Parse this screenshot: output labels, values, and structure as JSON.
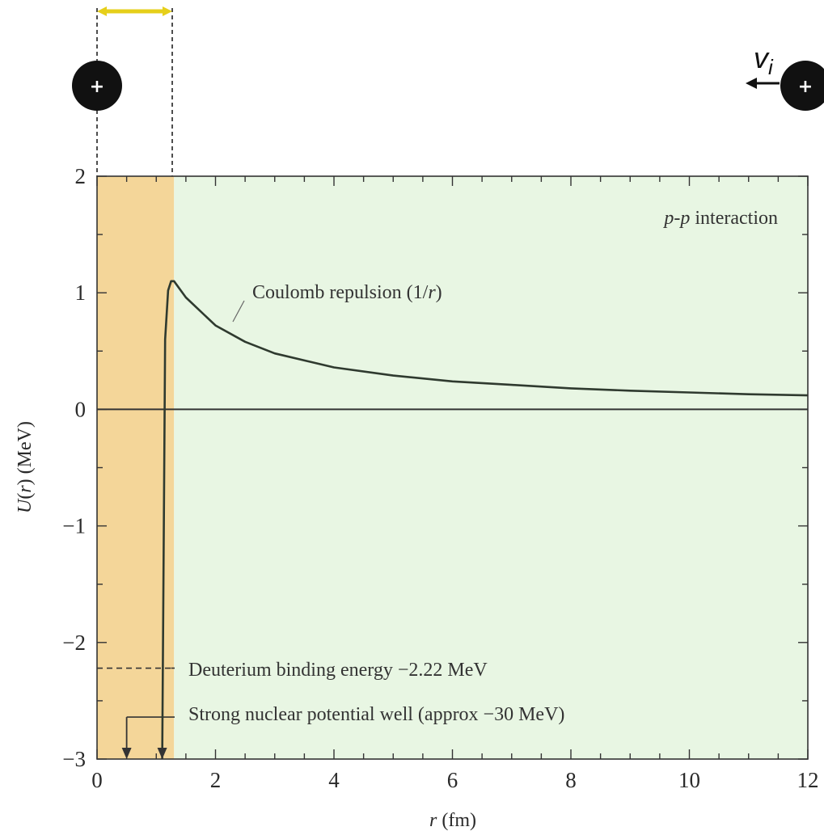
{
  "chart_data": {
    "type": "line",
    "title": "",
    "xlabel": "r (fm)",
    "ylabel": "U(r) (MeV)",
    "xlim": [
      0,
      12
    ],
    "ylim": [
      -3,
      2
    ],
    "x_ticks": [
      "0",
      "2",
      "4",
      "6",
      "8",
      "10",
      "12"
    ],
    "y_ticks": [
      "2",
      "1",
      "0",
      "−1",
      "−2",
      "−3"
    ],
    "grid": false,
    "regions": [
      {
        "x": [
          0,
          1.3
        ],
        "color": "#f4d699"
      },
      {
        "x": [
          1.3,
          12
        ],
        "color": "#e8f6e3"
      }
    ],
    "series": [
      {
        "color": "#2f3a2f",
        "x": [
          1.1,
          1.15,
          1.2,
          1.25,
          1.3,
          1.5,
          2,
          2.5,
          3,
          4,
          5,
          6,
          7,
          8,
          9,
          10,
          11,
          12
        ],
        "y": [
          -3,
          0.6,
          1.02,
          1.1,
          1.1,
          0.96,
          0.72,
          0.58,
          0.48,
          0.36,
          0.29,
          0.24,
          0.21,
          0.18,
          0.16,
          0.145,
          0.13,
          0.12
        ]
      }
    ],
    "reference_lines": [
      {
        "axis": "y",
        "value": 0
      },
      {
        "axis": "y",
        "value": -2.22,
        "style": "dashed"
      }
    ],
    "annotations": [
      {
        "id": "pp",
        "text": "p-p interaction",
        "parts": [
          {
            "t": "p",
            "italic": true
          },
          {
            "t": "-",
            "italic": false
          },
          {
            "t": "p",
            "italic": true
          },
          {
            "t": " interaction",
            "italic": false
          }
        ]
      },
      {
        "id": "coulomb",
        "text": "Coulomb repulsion (1/r)",
        "parts": [
          {
            "t": "Coulomb repulsion (1/",
            "italic": false
          },
          {
            "t": "r",
            "italic": true
          },
          {
            "t": ")",
            "italic": false
          }
        ]
      },
      {
        "id": "deuterium",
        "text": "Deuterium binding energy −2.22 MeV",
        "parts": [
          {
            "t": "Deuterium binding energy −2.22 MeV",
            "italic": false
          }
        ]
      },
      {
        "id": "well",
        "text": "Strong nuclear potential well (approx −30 MeV)",
        "parts": [
          {
            "t": "Strong nuclear potential well (approx −30 MeV)",
            "italic": false
          }
        ]
      }
    ]
  },
  "diagram": {
    "left_proton_sign": "+",
    "right_proton_sign": "+",
    "velocity_label": "v",
    "velocity_subscript": "i"
  },
  "colors": {
    "strong_region": "#f4d699",
    "coulomb_region": "#e8f6e3",
    "curve": "#2f3a2f",
    "range_arrow": "#e6cf1a",
    "proton": "#111111"
  }
}
